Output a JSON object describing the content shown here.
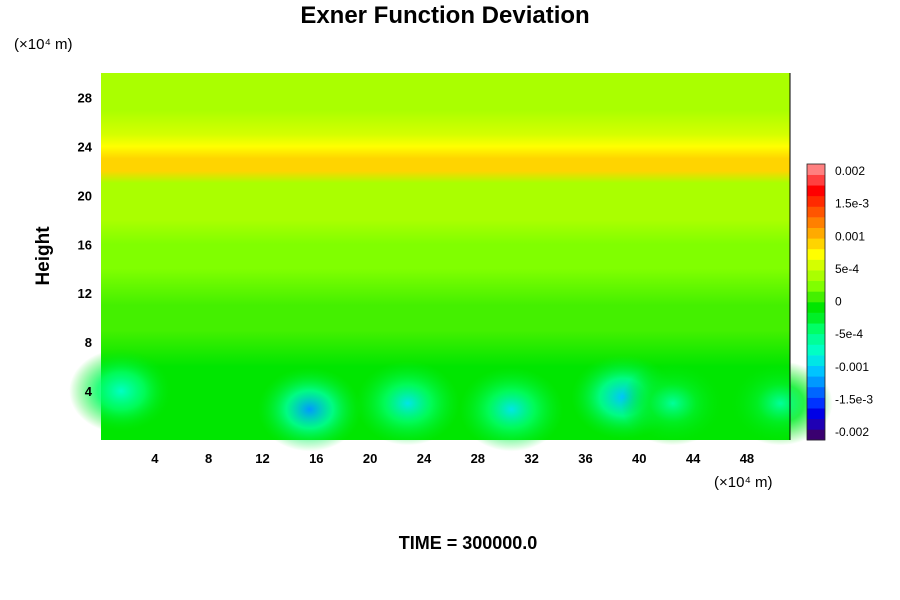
{
  "chart_data": {
    "type": "heatmap",
    "title": "Exner Function Deviation",
    "ylabel": "Height",
    "x_unit_label": "(×10⁴ m)",
    "y_unit_label": "(×10⁴ m)",
    "xlim": [
      0,
      51.2
    ],
    "ylim": [
      0,
      30
    ],
    "x_ticks": [
      "4",
      "8",
      "12",
      "16",
      "20",
      "24",
      "28",
      "32",
      "36",
      "40",
      "44",
      "48"
    ],
    "y_ticks": [
      "4",
      "8",
      "12",
      "16",
      "20",
      "24",
      "28"
    ],
    "colorbar": {
      "range": [
        -0.002,
        0.002
      ],
      "tick_labels": [
        "0.002",
        "1.5e-3",
        "0.001",
        "5e-4",
        "0",
        "-5e-4",
        "-0.001",
        "-1.5e-3",
        "-0.002"
      ],
      "colors": [
        "#3a0070",
        "#1f00b4",
        "#0000e6",
        "#0033ff",
        "#0066ff",
        "#0099ff",
        "#00c4ff",
        "#00e6e6",
        "#00ffc4",
        "#00ff99",
        "#00ff66",
        "#00f028",
        "#00e600",
        "#44f000",
        "#80ff00",
        "#aaff00",
        "#d4ff00",
        "#ffff00",
        "#ffd400",
        "#ffaa00",
        "#ff8000",
        "#ff5500",
        "#ff2a00",
        "#ff0000",
        "#ff4040",
        "#ff8080"
      ]
    },
    "profile": {
      "heights": [
        0,
        3,
        6,
        9,
        11,
        14,
        16,
        18,
        19,
        20,
        21,
        22,
        23,
        24,
        25,
        27,
        30
      ],
      "values": [
        -0.0001,
        -0.0001,
        -5e-05,
        0,
        5e-05,
        0.0002,
        0.0003,
        0.00035,
        0.0004,
        0.00045,
        0.0004,
        0.0008,
        0.0009,
        0.0007,
        0.0005,
        0.0004,
        0.00035
      ]
    },
    "anomalies": [
      {
        "x": 1.5,
        "y": 4,
        "value": -0.0007
      },
      {
        "x": 15.5,
        "y": 2.5,
        "value": -0.0012
      },
      {
        "x": 22.8,
        "y": 3,
        "value": -0.0008
      },
      {
        "x": 30.5,
        "y": 2.5,
        "value": -0.0008
      },
      {
        "x": 38.8,
        "y": 3.5,
        "value": -0.001
      },
      {
        "x": 42.5,
        "y": 3,
        "value": -0.0006
      },
      {
        "x": 50.5,
        "y": 3,
        "value": -0.0006
      }
    ]
  },
  "footer": {
    "time_label": "TIME = 300000.0"
  }
}
